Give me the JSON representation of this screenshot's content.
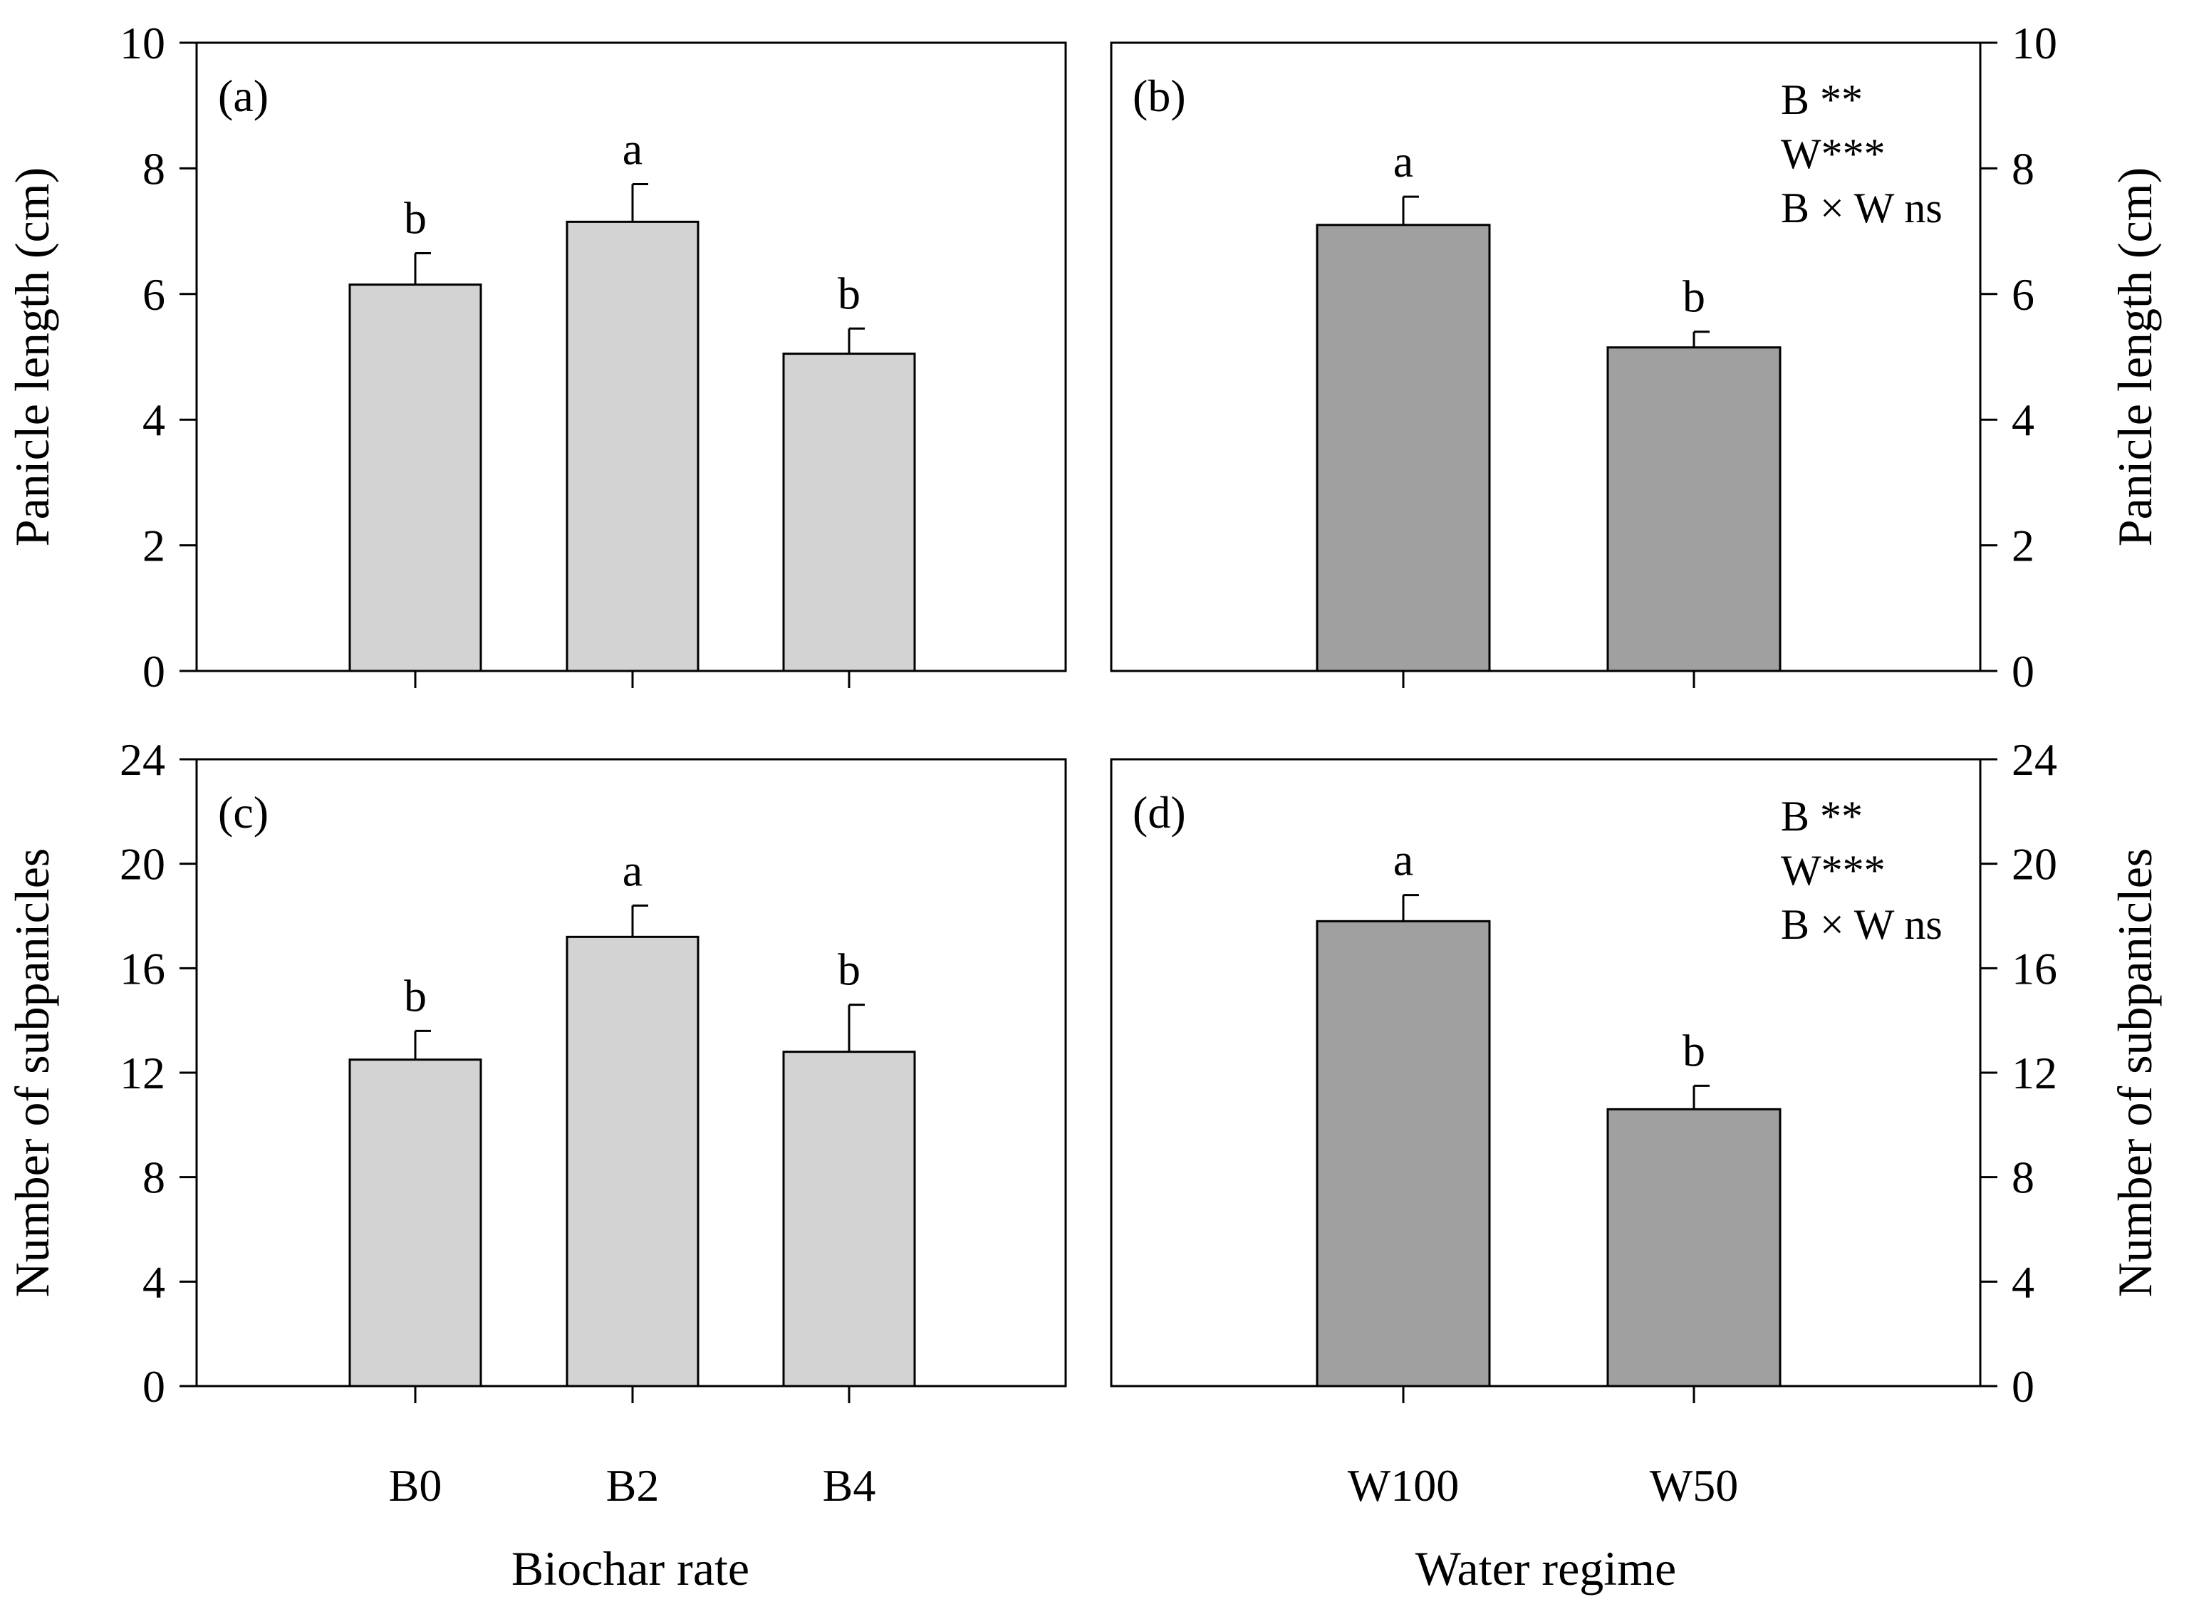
{
  "figure": {
    "bottom_xlabels": [
      "Biochar rate",
      "Water regime"
    ]
  },
  "chart_data": [
    {
      "id": "a",
      "type": "bar",
      "panel_label": "(a)",
      "ylabel": "Panicle length (cm)",
      "ylabel_side": "left",
      "ylim": [
        0,
        10
      ],
      "yticks": [
        0,
        2,
        4,
        6,
        8,
        10
      ],
      "categories": [
        "B0",
        "B2",
        "B4"
      ],
      "values": [
        6.15,
        7.15,
        5.05
      ],
      "errors": [
        0.5,
        0.6,
        0.4
      ],
      "letters": [
        "b",
        "a",
        "b"
      ],
      "bar_color": "#d3d3d3",
      "xlabel": "Biochar rate",
      "show_tick_labels": false,
      "annotation_lines": []
    },
    {
      "id": "b",
      "type": "bar",
      "panel_label": "(b)",
      "ylabel": "Panicle length (cm)",
      "ylabel_side": "right",
      "ylim": [
        0,
        10
      ],
      "yticks": [
        0,
        2,
        4,
        6,
        8,
        10
      ],
      "categories": [
        "W100",
        "W50"
      ],
      "values": [
        7.1,
        5.15
      ],
      "errors": [
        0.45,
        0.25
      ],
      "letters": [
        "a",
        "b"
      ],
      "bar_color": "#a0a0a0",
      "xlabel": "Water regime",
      "show_tick_labels": false,
      "annotation_lines": [
        "B **",
        "W***",
        "B × W ns"
      ]
    },
    {
      "id": "c",
      "type": "bar",
      "panel_label": "(c)",
      "ylabel": "Number of subpanicles",
      "ylabel_side": "left",
      "ylim": [
        0,
        24
      ],
      "yticks": [
        0,
        4,
        8,
        12,
        16,
        20,
        24
      ],
      "categories": [
        "B0",
        "B2",
        "B4"
      ],
      "values": [
        12.5,
        17.2,
        12.8
      ],
      "errors": [
        1.1,
        1.2,
        1.8
      ],
      "letters": [
        "b",
        "a",
        "b"
      ],
      "bar_color": "#d3d3d3",
      "xlabel": "Biochar rate",
      "show_tick_labels": true,
      "annotation_lines": []
    },
    {
      "id": "d",
      "type": "bar",
      "panel_label": "(d)",
      "ylabel": "Number of subpanicles",
      "ylabel_side": "right",
      "ylim": [
        0,
        24
      ],
      "yticks": [
        0,
        4,
        8,
        12,
        16,
        20,
        24
      ],
      "categories": [
        "W100",
        "W50"
      ],
      "values": [
        17.8,
        10.6
      ],
      "errors": [
        1.0,
        0.9
      ],
      "letters": [
        "a",
        "b"
      ],
      "bar_color": "#a0a0a0",
      "xlabel": "Water regime",
      "show_tick_labels": true,
      "annotation_lines": [
        "B **",
        "W***",
        "B × W ns"
      ]
    }
  ]
}
